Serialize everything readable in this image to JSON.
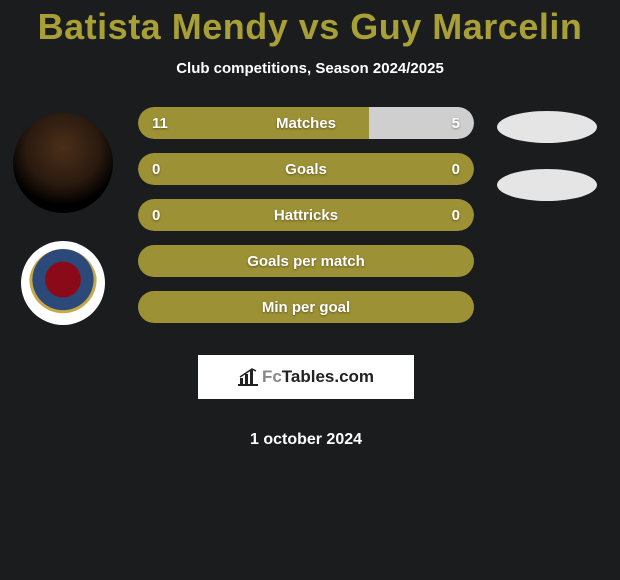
{
  "title": "Batista Mendy vs Guy Marcelin",
  "subtitle": "Club competitions, Season 2024/2025",
  "date": "1 october 2024",
  "colors": {
    "background": "#1b1c1d",
    "title": "#a99f37",
    "pill_fill": "#9d9135",
    "pill_fill_light": "#cfcfcf",
    "text": "#ffffff"
  },
  "bar_style": {
    "height": 32,
    "gap": 14,
    "radius": 16,
    "font_size": 15,
    "font_weight": "bold"
  },
  "stats": [
    {
      "label": "Matches",
      "left_value": "11",
      "right_value": "5",
      "left_share": 0.688,
      "right_share": 0.312,
      "left_color": "#9d9135",
      "right_color": "#cfcfcf"
    },
    {
      "label": "Goals",
      "left_value": "0",
      "right_value": "0",
      "left_share": 0.5,
      "right_share": 0.5,
      "left_color": "#9d9135",
      "right_color": "#9d9135"
    },
    {
      "label": "Hattricks",
      "left_value": "0",
      "right_value": "0",
      "left_share": 0.5,
      "right_share": 0.5,
      "left_color": "#9d9135",
      "right_color": "#9d9135"
    }
  ],
  "pill_labels": {
    "gpm": "Goals per match",
    "mpg": "Min per goal"
  },
  "logo": {
    "prefix": "Fc",
    "suffix": "Tables.com"
  }
}
